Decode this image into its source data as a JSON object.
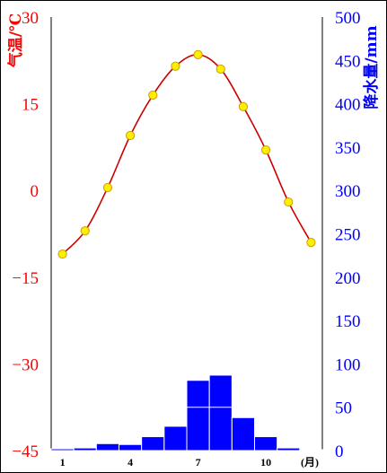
{
  "chart_data": {
    "type": "climograph",
    "months": [
      1,
      2,
      3,
      4,
      5,
      6,
      7,
      8,
      9,
      10,
      11,
      12
    ],
    "x_tick_labels": [
      "1",
      "4",
      "7",
      "10"
    ],
    "x_tick_months": [
      1,
      4,
      7,
      10
    ],
    "x_unit": "(月)",
    "temperature": {
      "label": "气温/℃",
      "values": [
        -11,
        -7,
        0.5,
        9.5,
        16.5,
        21.5,
        23.5,
        21,
        14.5,
        7,
        -2,
        -9
      ],
      "ylim": [
        -45,
        30
      ],
      "ticks": [
        "30",
        "15",
        "0",
        "-15",
        "-30",
        "-45"
      ],
      "tick_values": [
        30,
        15,
        0,
        -15,
        -30,
        -45
      ],
      "color": "#ff0000",
      "line_color": "#cc0000",
      "marker_fill": "#ffee00",
      "marker_stroke": "#c8a000"
    },
    "precipitation": {
      "label": "降水量/mm",
      "values": [
        2,
        3,
        8,
        7,
        16,
        28,
        81,
        87,
        38,
        16,
        3,
        1
      ],
      "ylim": [
        0,
        500
      ],
      "ticks": [
        "500",
        "450",
        "400",
        "350",
        "300",
        "250",
        "200",
        "150",
        "100",
        "50",
        "0"
      ],
      "tick_values": [
        500,
        450,
        400,
        350,
        300,
        250,
        200,
        150,
        100,
        50,
        0
      ],
      "color": "#0000ff",
      "bar_color": "#0000ff"
    }
  }
}
